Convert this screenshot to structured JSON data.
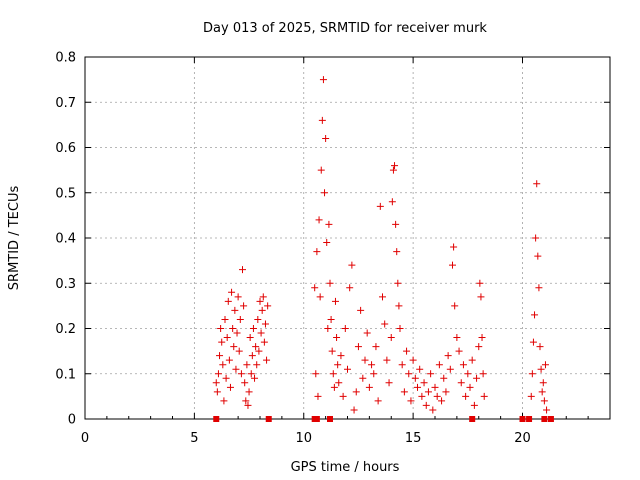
{
  "chart_data": {
    "type": "scatter",
    "title": "Day 013 of 2025, SRMTID for receiver murk",
    "xlabel": "GPS time / hours",
    "ylabel": "SRMTID / TECUs",
    "xlim": [
      0,
      24
    ],
    "ylim": [
      0,
      0.8
    ],
    "xticks": [
      0,
      5,
      10,
      15,
      20
    ],
    "xtick_labels": [
      "0",
      "5",
      "10",
      "15",
      "20"
    ],
    "yticks": [
      0,
      0.1,
      0.2,
      0.3,
      0.4,
      0.5,
      0.6,
      0.7,
      0.8
    ],
    "ytick_labels": [
      "0",
      "0.1",
      "0.2",
      "0.3",
      "0.4",
      "0.5",
      "0.6",
      "0.7",
      "0.8"
    ],
    "grid": true,
    "marker": "plus",
    "marker_color": "#e00000",
    "zero_markers": [
      6.0,
      8.4,
      10.5,
      10.6,
      11.2,
      17.7,
      20.0,
      20.3,
      21.0,
      21.3
    ],
    "series": [
      {
        "values": [
          [
            6.0,
            0.08
          ],
          [
            6.05,
            0.06
          ],
          [
            6.1,
            0.1
          ],
          [
            6.15,
            0.14
          ],
          [
            6.2,
            0.2
          ],
          [
            6.25,
            0.17
          ],
          [
            6.3,
            0.12
          ],
          [
            6.35,
            0.04
          ],
          [
            6.4,
            0.22
          ],
          [
            6.45,
            0.09
          ],
          [
            6.5,
            0.18
          ],
          [
            6.55,
            0.26
          ],
          [
            6.6,
            0.13
          ],
          [
            6.65,
            0.07
          ],
          [
            6.7,
            0.28
          ],
          [
            6.75,
            0.2
          ],
          [
            6.8,
            0.16
          ],
          [
            6.85,
            0.24
          ],
          [
            6.9,
            0.11
          ],
          [
            6.95,
            0.19
          ],
          [
            7.0,
            0.27
          ],
          [
            7.05,
            0.15
          ],
          [
            7.1,
            0.22
          ],
          [
            7.15,
            0.1
          ],
          [
            7.2,
            0.33
          ],
          [
            7.25,
            0.25
          ],
          [
            7.3,
            0.08
          ],
          [
            7.35,
            0.04
          ],
          [
            7.4,
            0.12
          ],
          [
            7.45,
            0.03
          ],
          [
            7.5,
            0.06
          ],
          [
            7.55,
            0.18
          ],
          [
            7.6,
            0.1
          ],
          [
            7.65,
            0.14
          ],
          [
            7.7,
            0.2
          ],
          [
            7.75,
            0.09
          ],
          [
            7.8,
            0.16
          ],
          [
            7.85,
            0.12
          ],
          [
            7.9,
            0.22
          ],
          [
            7.95,
            0.15
          ],
          [
            8.0,
            0.26
          ],
          [
            8.05,
            0.19
          ],
          [
            8.1,
            0.24
          ],
          [
            8.15,
            0.27
          ],
          [
            8.2,
            0.17
          ],
          [
            8.25,
            0.21
          ],
          [
            8.3,
            0.13
          ],
          [
            8.35,
            0.25
          ],
          [
            10.5,
            0.29
          ],
          [
            10.55,
            0.1
          ],
          [
            10.6,
            0.37
          ],
          [
            10.65,
            0.05
          ],
          [
            10.7,
            0.44
          ],
          [
            10.75,
            0.27
          ],
          [
            10.8,
            0.55
          ],
          [
            10.85,
            0.66
          ],
          [
            10.9,
            0.75
          ],
          [
            10.95,
            0.5
          ],
          [
            11.0,
            0.62
          ],
          [
            11.05,
            0.39
          ],
          [
            11.1,
            0.2
          ],
          [
            11.15,
            0.43
          ],
          [
            11.2,
            0.3
          ],
          [
            11.25,
            0.22
          ],
          [
            11.3,
            0.15
          ],
          [
            11.35,
            0.1
          ],
          [
            11.4,
            0.07
          ],
          [
            11.45,
            0.26
          ],
          [
            11.5,
            0.18
          ],
          [
            11.55,
            0.12
          ],
          [
            11.6,
            0.08
          ],
          [
            11.7,
            0.14
          ],
          [
            11.8,
            0.05
          ],
          [
            11.9,
            0.2
          ],
          [
            12.0,
            0.11
          ],
          [
            12.1,
            0.29
          ],
          [
            12.2,
            0.34
          ],
          [
            12.3,
            0.02
          ],
          [
            12.4,
            0.06
          ],
          [
            12.5,
            0.16
          ],
          [
            12.6,
            0.24
          ],
          [
            12.7,
            0.09
          ],
          [
            12.8,
            0.13
          ],
          [
            12.9,
            0.19
          ],
          [
            13.0,
            0.07
          ],
          [
            13.1,
            0.12
          ],
          [
            13.2,
            0.1
          ],
          [
            13.3,
            0.16
          ],
          [
            13.4,
            0.04
          ],
          [
            13.5,
            0.47
          ],
          [
            13.6,
            0.27
          ],
          [
            13.7,
            0.21
          ],
          [
            13.8,
            0.13
          ],
          [
            13.9,
            0.08
          ],
          [
            14.0,
            0.18
          ],
          [
            14.05,
            0.48
          ],
          [
            14.1,
            0.55
          ],
          [
            14.15,
            0.56
          ],
          [
            14.2,
            0.43
          ],
          [
            14.25,
            0.37
          ],
          [
            14.3,
            0.3
          ],
          [
            14.35,
            0.25
          ],
          [
            14.4,
            0.2
          ],
          [
            14.5,
            0.12
          ],
          [
            14.6,
            0.06
          ],
          [
            14.7,
            0.15
          ],
          [
            14.8,
            0.1
          ],
          [
            14.9,
            0.04
          ],
          [
            15.0,
            0.13
          ],
          [
            15.1,
            0.09
          ],
          [
            15.2,
            0.07
          ],
          [
            15.3,
            0.11
          ],
          [
            15.4,
            0.05
          ],
          [
            15.5,
            0.08
          ],
          [
            15.6,
            0.03
          ],
          [
            15.7,
            0.06
          ],
          [
            15.8,
            0.1
          ],
          [
            15.9,
            0.02
          ],
          [
            16.0,
            0.07
          ],
          [
            16.1,
            0.05
          ],
          [
            16.2,
            0.12
          ],
          [
            16.3,
            0.04
          ],
          [
            16.4,
            0.09
          ],
          [
            16.5,
            0.06
          ],
          [
            16.6,
            0.14
          ],
          [
            16.7,
            0.11
          ],
          [
            16.8,
            0.34
          ],
          [
            16.85,
            0.38
          ],
          [
            16.9,
            0.25
          ],
          [
            17.0,
            0.18
          ],
          [
            17.1,
            0.15
          ],
          [
            17.2,
            0.08
          ],
          [
            17.3,
            0.12
          ],
          [
            17.4,
            0.05
          ],
          [
            17.5,
            0.1
          ],
          [
            17.6,
            0.07
          ],
          [
            17.7,
            0.13
          ],
          [
            17.8,
            0.03
          ],
          [
            17.9,
            0.09
          ],
          [
            18.0,
            0.16
          ],
          [
            18.05,
            0.3
          ],
          [
            18.1,
            0.27
          ],
          [
            18.15,
            0.18
          ],
          [
            18.2,
            0.1
          ],
          [
            18.25,
            0.05
          ],
          [
            20.4,
            0.05
          ],
          [
            20.45,
            0.1
          ],
          [
            20.5,
            0.17
          ],
          [
            20.55,
            0.23
          ],
          [
            20.6,
            0.4
          ],
          [
            20.65,
            0.52
          ],
          [
            20.7,
            0.36
          ],
          [
            20.75,
            0.29
          ],
          [
            20.8,
            0.16
          ],
          [
            20.85,
            0.11
          ],
          [
            20.9,
            0.06
          ],
          [
            20.95,
            0.08
          ],
          [
            21.0,
            0.04
          ],
          [
            21.05,
            0.12
          ],
          [
            21.1,
            0.02
          ]
        ]
      }
    ]
  }
}
